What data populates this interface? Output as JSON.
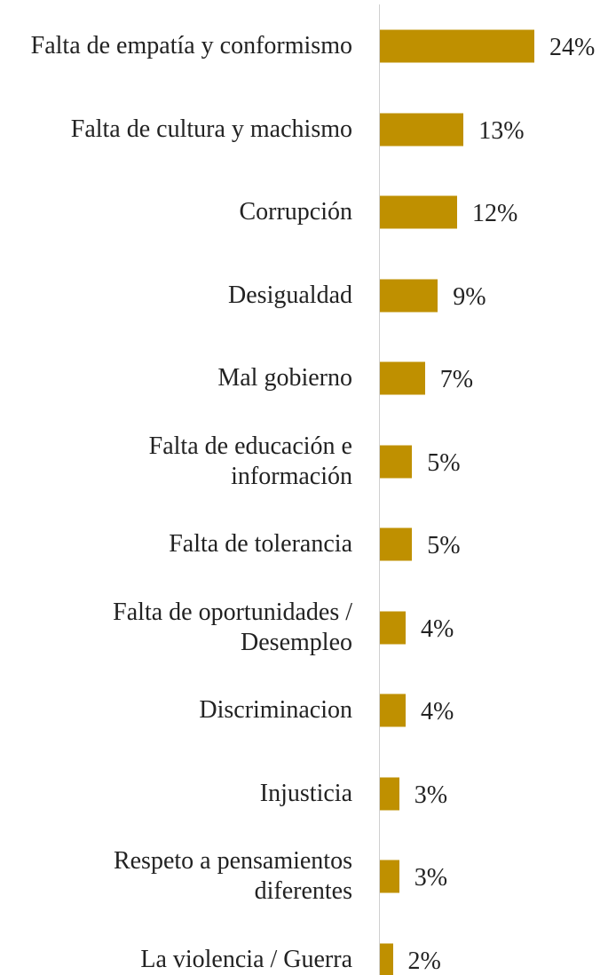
{
  "chart_data": {
    "type": "bar",
    "orientation": "horizontal",
    "categories": [
      "Falta de empatía y conformismo",
      "Falta de cultura y machismo",
      "Corrupción",
      "Desigualdad",
      "Mal gobierno",
      "Falta de educación e información",
      "Falta de tolerancia",
      "Falta de oportunidades / Desempleo",
      "Discriminacion",
      "Injusticia",
      "Respeto a pensamientos diferentes",
      "La violencia / Guerra"
    ],
    "values": [
      24,
      13,
      12,
      9,
      7,
      5,
      5,
      4,
      4,
      3,
      3,
      2
    ],
    "value_labels": [
      "24%",
      "13%",
      "12%",
      "9%",
      "7%",
      "5%",
      "5%",
      "4%",
      "4%",
      "3%",
      "3%",
      "2%"
    ],
    "color": "#bf9000",
    "xlim": [
      0,
      30
    ]
  }
}
